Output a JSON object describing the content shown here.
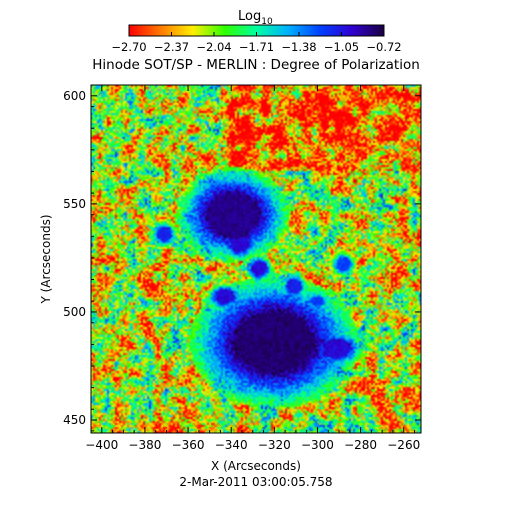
{
  "chart_data": {
    "type": "heatmap",
    "title": "Hinode SOT/SP - MERLIN : Degree of Polarization",
    "xlabel": "X (Arcseconds)",
    "ylabel": "Y (Arcseconds)",
    "date_label": "2-Mar-2011 03:00:05.758",
    "xlim": [
      -405,
      -252
    ],
    "ylim": [
      444,
      605
    ],
    "x_ticks": [
      -400,
      -380,
      -360,
      -340,
      -320,
      -300,
      -280,
      -260
    ],
    "y_ticks": [
      450,
      500,
      550,
      600
    ],
    "x_ticklabels": [
      "−400",
      "−380",
      "−360",
      "−340",
      "−320",
      "−300",
      "−280",
      "−260"
    ],
    "y_ticklabels": [
      "450",
      "500",
      "550",
      "600"
    ],
    "colorbar": {
      "label_base": "Log",
      "label_sub": "10",
      "range": [
        -2.7,
        -0.72
      ],
      "ticks": [
        -2.7,
        -2.37,
        -2.04,
        -1.71,
        -1.38,
        -1.05,
        -0.72
      ],
      "ticklabels": [
        "−2.70",
        "−2.37",
        "−2.04",
        "−1.71",
        "−1.38",
        "−1.05",
        "−0.72"
      ],
      "colors": [
        "#ff0000",
        "#ff7a00",
        "#ffee00",
        "#30ff00",
        "#00ffa0",
        "#00b0ff",
        "#0040ff",
        "#3000d0",
        "#1a0040"
      ]
    },
    "features": [
      {
        "name": "upper sunspot",
        "x": -339,
        "y": 545,
        "rx": 12,
        "ry": 10,
        "value": -0.85
      },
      {
        "name": "main sunspot",
        "x": -320,
        "y": 486,
        "rx": 18,
        "ry": 14,
        "value": -0.8
      },
      {
        "name": "pore east of main spot",
        "x": -291,
        "y": 483,
        "rx": 6,
        "ry": 4,
        "value": -1.0
      },
      {
        "name": "small pore",
        "x": -336,
        "y": 532,
        "rx": 4,
        "ry": 4,
        "value": -1.0
      },
      {
        "name": "small pore",
        "x": -327,
        "y": 520,
        "rx": 3,
        "ry": 3,
        "value": -1.0
      },
      {
        "name": "small pore",
        "x": -343,
        "y": 507,
        "rx": 4,
        "ry": 3,
        "value": -1.0
      },
      {
        "name": "small pore",
        "x": -371,
        "y": 536,
        "rx": 3,
        "ry": 3,
        "value": -1.1
      },
      {
        "name": "small pore",
        "x": -311,
        "y": 512,
        "rx": 3,
        "ry": 3,
        "value": -1.1
      },
      {
        "name": "small pore",
        "x": -288,
        "y": 522,
        "rx": 3,
        "ry": 3,
        "value": -1.2
      },
      {
        "name": "small pore",
        "x": -300,
        "y": 505,
        "rx": 3,
        "ry": 2,
        "value": -1.2
      }
    ],
    "background_value": -2.1,
    "grid": false
  }
}
